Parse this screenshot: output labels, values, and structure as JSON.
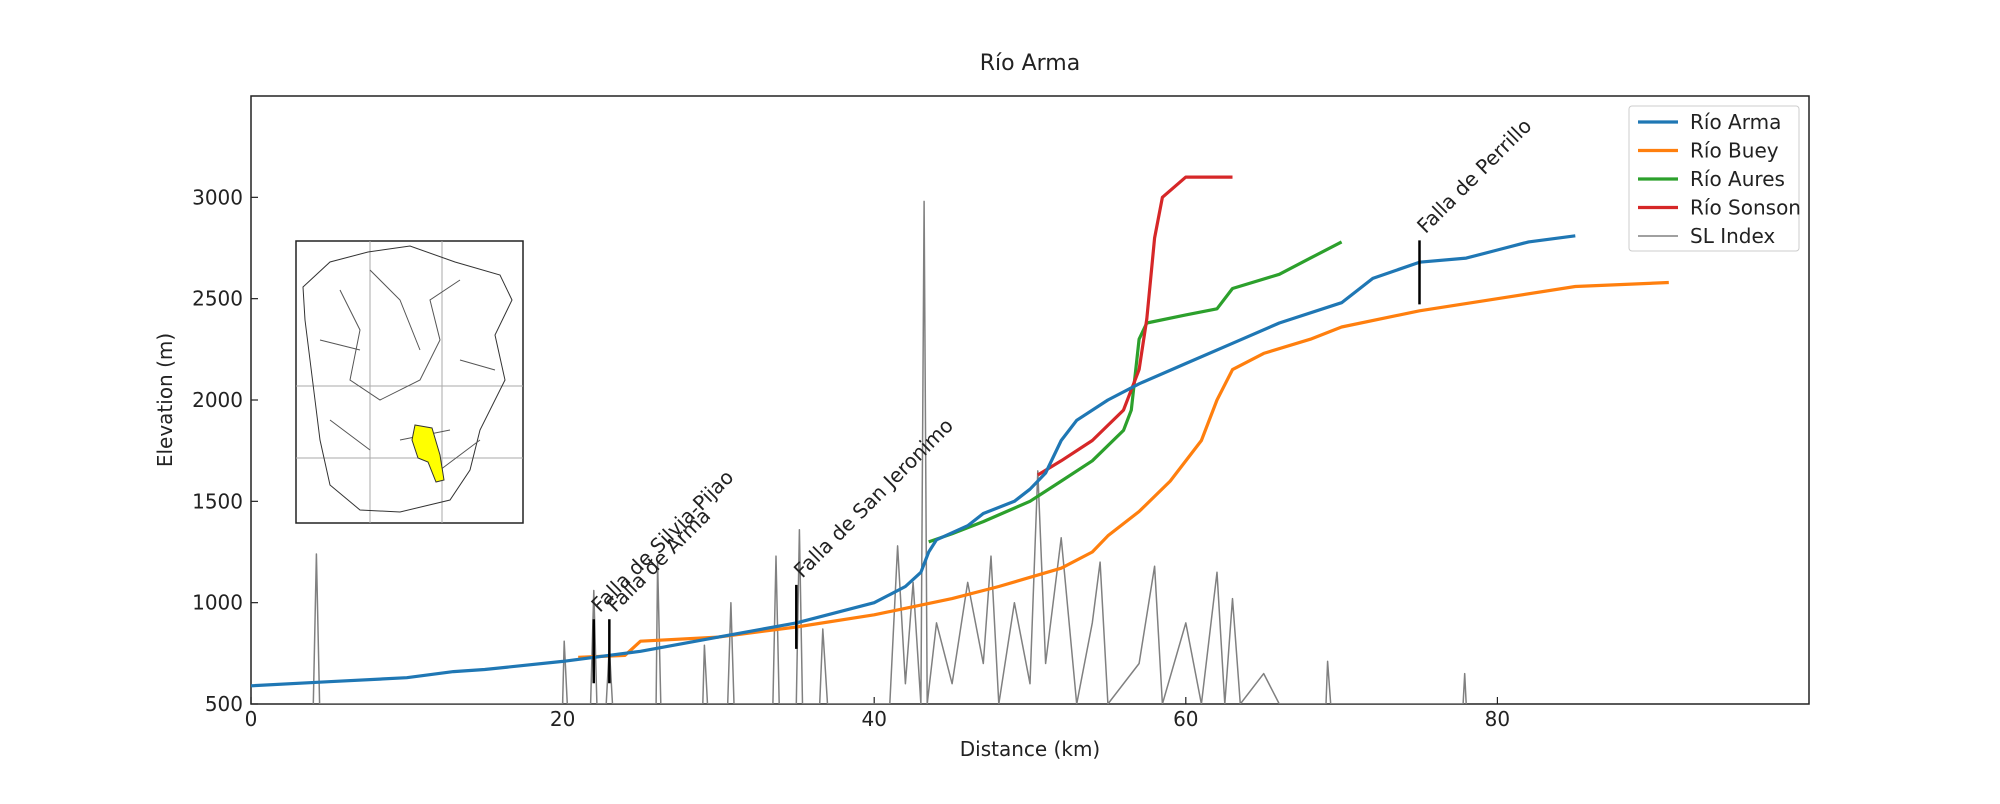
{
  "chart_data": {
    "type": "line",
    "title": "Río Arma",
    "xlabel": "Distance (km)",
    "ylabel": "Elevation (m)",
    "xlim": [
      0,
      100
    ],
    "ylim": [
      500,
      3500
    ],
    "xticks": [
      0,
      20,
      40,
      60,
      80
    ],
    "yticks": [
      500,
      1000,
      1500,
      2000,
      2500,
      3000
    ],
    "legend": "upper right",
    "series": [
      {
        "name": "Río Arma",
        "color": "#1f77b4",
        "x": [
          0,
          5,
          10,
          13,
          15,
          20,
          25,
          30,
          35,
          38,
          40,
          42,
          43,
          43.5,
          44,
          46,
          47,
          49,
          50,
          51,
          52,
          53,
          55,
          57,
          60,
          63,
          66,
          70,
          72,
          75,
          78,
          80,
          82,
          85
        ],
        "values": [
          590,
          610,
          630,
          660,
          670,
          710,
          760,
          830,
          900,
          960,
          1000,
          1080,
          1150,
          1250,
          1310,
          1380,
          1440,
          1500,
          1560,
          1640,
          1800,
          1900,
          2000,
          2080,
          2180,
          2280,
          2380,
          2480,
          2600,
          2680,
          2700,
          2740,
          2780,
          2810
        ]
      },
      {
        "name": "Río Buey",
        "color": "#ff7f0e",
        "x": [
          21,
          24,
          25,
          30,
          35,
          40,
          45,
          48,
          52,
          54,
          55,
          57,
          59,
          61,
          62,
          63,
          65,
          68,
          70,
          75,
          80,
          85,
          91
        ],
        "values": [
          730,
          740,
          810,
          830,
          880,
          940,
          1020,
          1080,
          1170,
          1250,
          1330,
          1450,
          1600,
          1800,
          2000,
          2150,
          2230,
          2300,
          2360,
          2440,
          2500,
          2560,
          2580
        ]
      },
      {
        "name": "Río Aures",
        "color": "#2ca02c",
        "x": [
          43.5,
          45,
          47,
          50,
          52,
          54,
          56,
          56.5,
          57,
          57.5,
          60,
          62,
          63,
          66,
          68,
          70
        ],
        "values": [
          1300,
          1340,
          1400,
          1500,
          1600,
          1700,
          1850,
          1950,
          2300,
          2380,
          2420,
          2450,
          2550,
          2620,
          2700,
          2780
        ]
      },
      {
        "name": "Río Sonson",
        "color": "#d62728",
        "x": [
          50.5,
          52,
          54,
          56,
          57,
          57.5,
          58,
          58.5,
          60,
          63
        ],
        "values": [
          1630,
          1700,
          1800,
          1950,
          2150,
          2400,
          2800,
          3000,
          3100,
          3100
        ]
      },
      {
        "name": "SL Index",
        "color": "#808080",
        "width": 1.5,
        "x": [
          4,
          4.2,
          4.4,
          20,
          20.1,
          20.3,
          21.8,
          22,
          22.2,
          22.8,
          23,
          23.2,
          26,
          26.1,
          26.3,
          29,
          29.1,
          29.3,
          30.6,
          30.8,
          31,
          33.5,
          33.7,
          33.9,
          35,
          35.2,
          35.4,
          36.5,
          36.7,
          37,
          41,
          41.5,
          42,
          42.5,
          43,
          43.2,
          43.4,
          44,
          45,
          46,
          47,
          47.5,
          48,
          49,
          50,
          50.5,
          51,
          52,
          53,
          54,
          54.5,
          55,
          57,
          58,
          58.5,
          60,
          61,
          62,
          62.5,
          63,
          63.5,
          65,
          66,
          69,
          69.1,
          69.3,
          77.8,
          77.9,
          78
        ],
        "values": [
          500,
          1240,
          500,
          500,
          810,
          500,
          500,
          1060,
          500,
          500,
          780,
          500,
          500,
          1200,
          500,
          500,
          790,
          500,
          500,
          1000,
          500,
          500,
          1230,
          500,
          500,
          1360,
          500,
          500,
          870,
          500,
          500,
          1280,
          600,
          1100,
          500,
          2980,
          500,
          900,
          600,
          1100,
          700,
          1230,
          500,
          1000,
          600,
          1650,
          700,
          1320,
          500,
          900,
          1200,
          500,
          700,
          1180,
          500,
          900,
          500,
          1150,
          500,
          1020,
          500,
          650,
          500,
          500,
          710,
          500,
          500,
          650,
          500
        ]
      }
    ],
    "annotations": [
      {
        "text": "Falla de Silvia-Pijao",
        "x": 22,
        "y": 760
      },
      {
        "text": "Falla de Arma",
        "x": 23,
        "y": 760
      },
      {
        "text": "Falla de San Jeronimo",
        "x": 35,
        "y": 930
      },
      {
        "text": "Falla de Perrillo",
        "x": 75,
        "y": 2630
      }
    ]
  }
}
